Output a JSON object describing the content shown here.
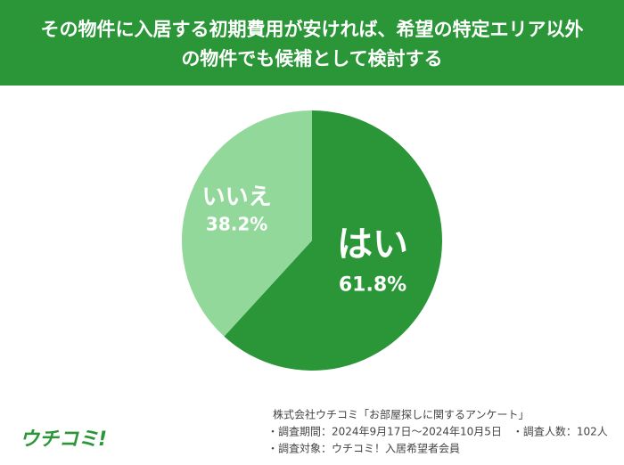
{
  "chart_data": {
    "type": "pie",
    "title": [
      "その物件に入居する初期費用が安ければ、希望の特定エリア以外",
      "の物件でも候補として検討する"
    ],
    "categories": [
      "はい",
      "いいえ"
    ],
    "values": [
      61.8,
      38.2
    ],
    "value_labels": [
      "61.8%",
      "38.2%"
    ],
    "colors": [
      "#2a9638",
      "#92d89b"
    ],
    "notes": [
      "株式会社ウチコミ「お部屋探しに関するアンケート」",
      "・調査期間：2024年9月17日〜2024年10月5日　・調査人数：102人",
      "・調査対象：ウチコミ！入居希望者会員"
    ],
    "logo": "ウチコミ!"
  }
}
